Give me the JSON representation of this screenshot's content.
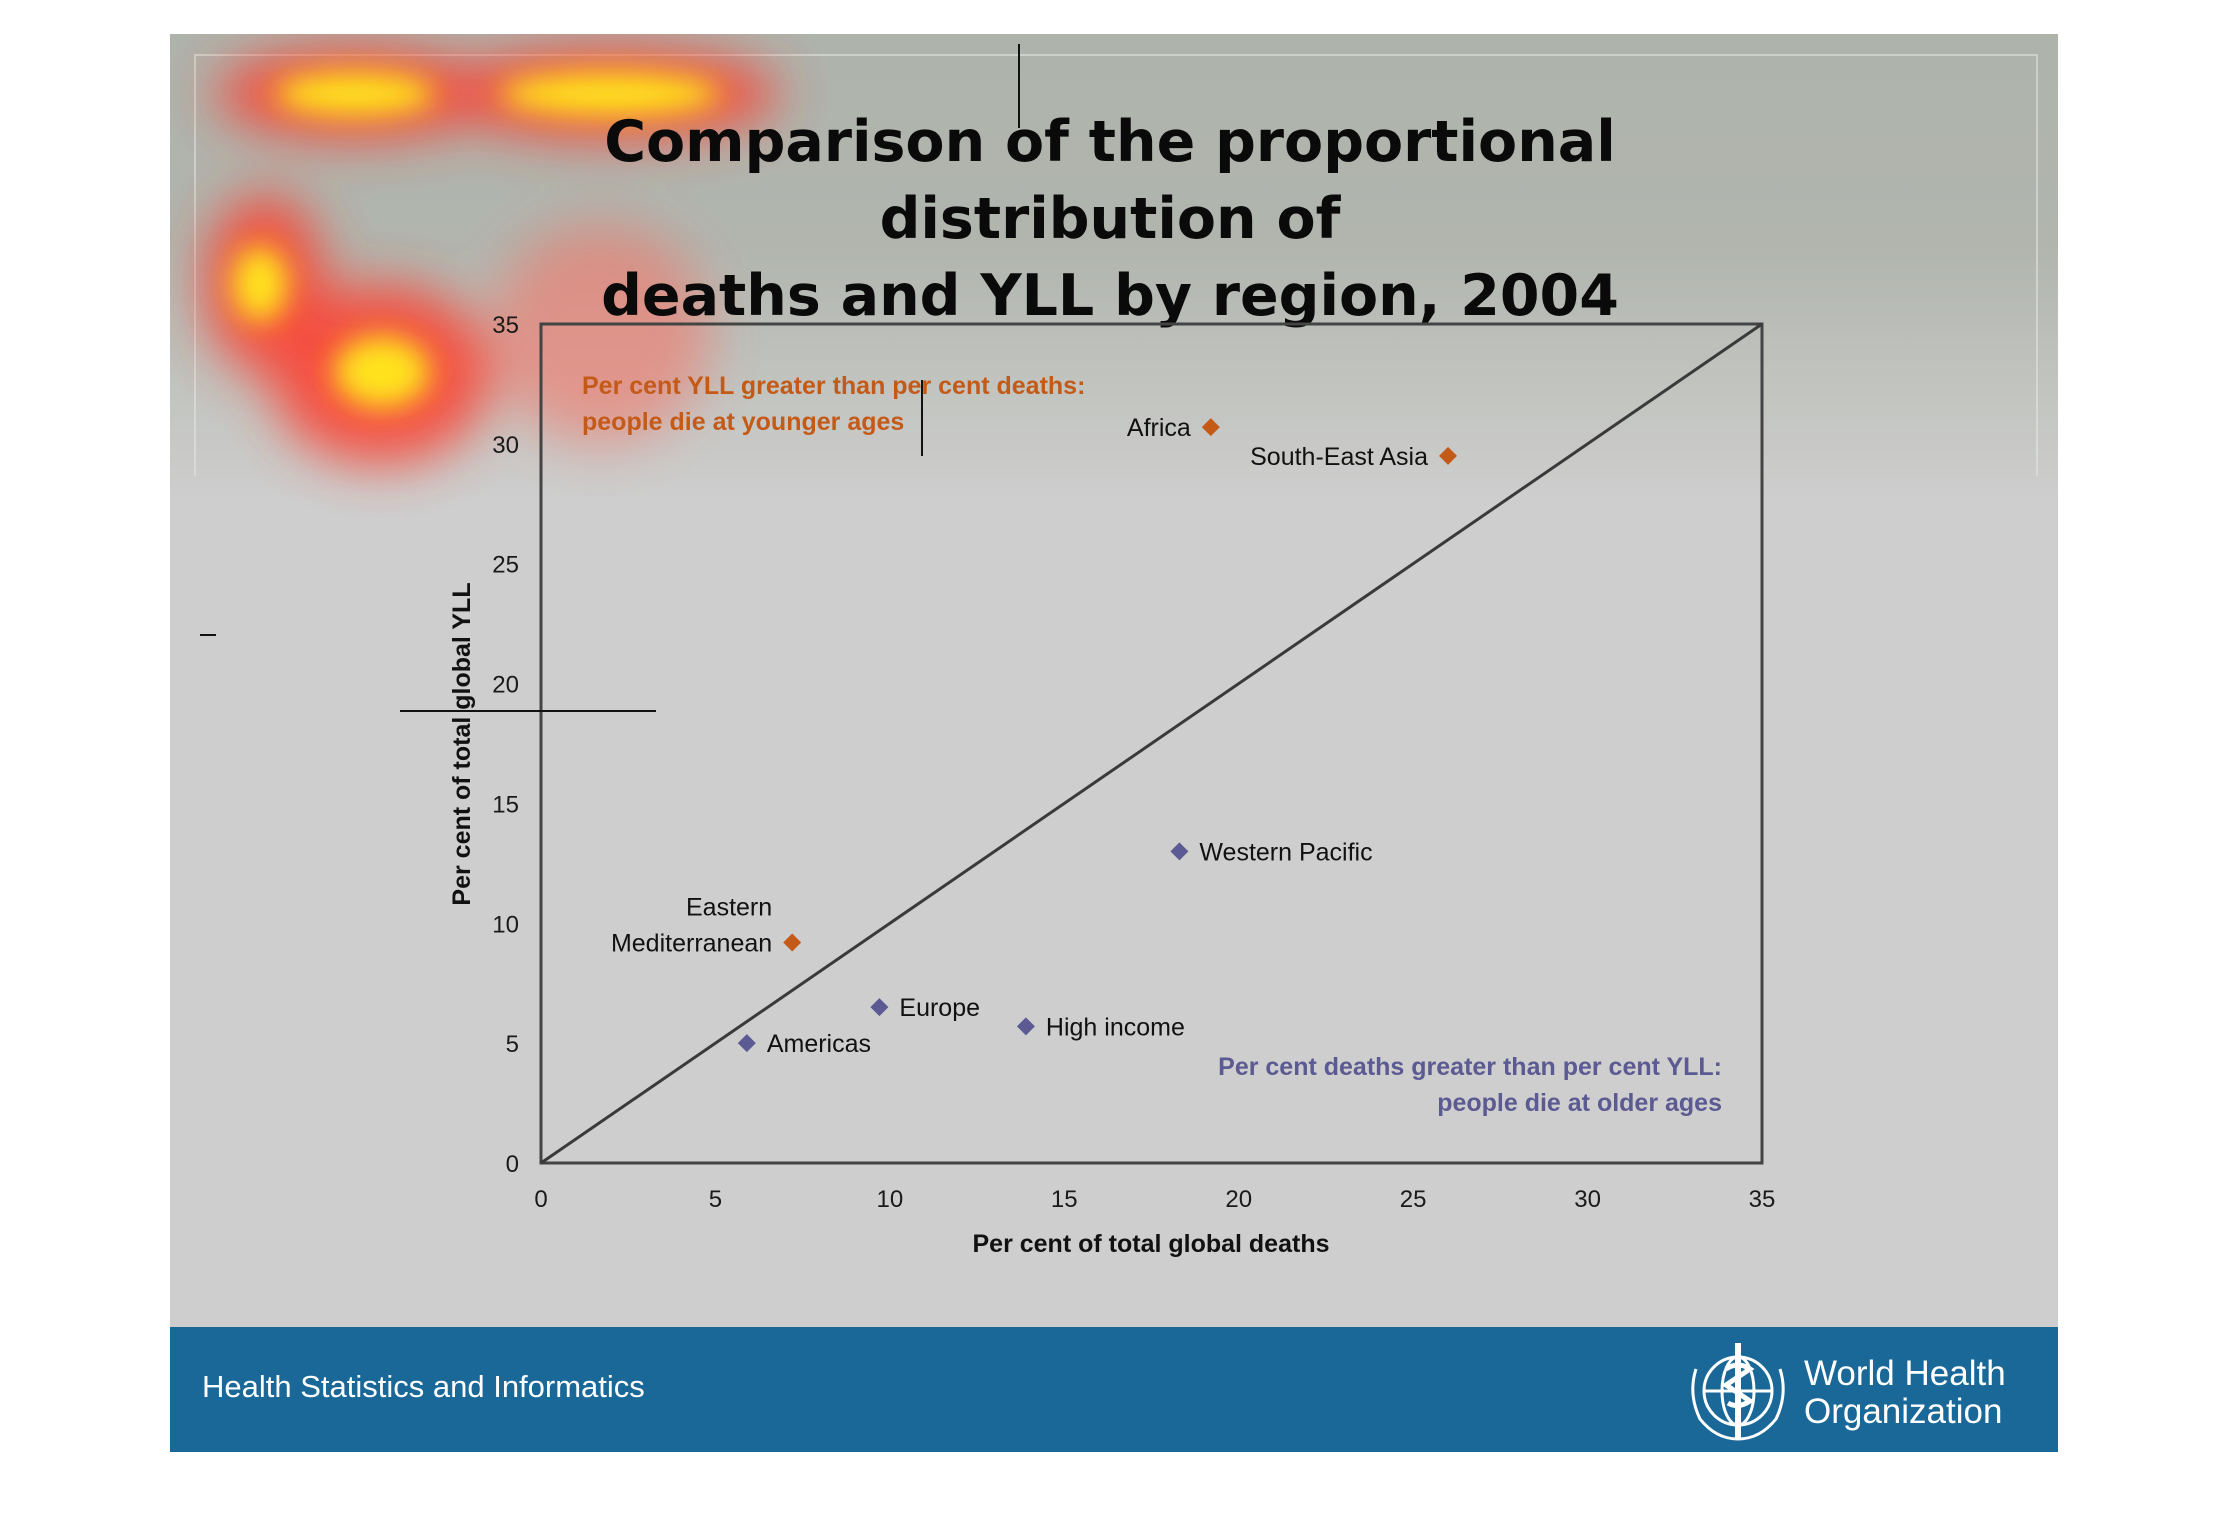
{
  "slide": {
    "title": "Comparison of the proportional distribution of deaths and YLL by region, 2004",
    "footer": "Health Statistics and Informatics",
    "logo": {
      "name_line1": "World Health",
      "name_line2": "Organization"
    },
    "colors": {
      "footer": "#1a6897",
      "orange": "#c45a18",
      "blue": "#5b5a92"
    }
  },
  "chart_data": {
    "type": "scatter",
    "title": "Comparison of the proportional distribution of deaths and YLL by region, 2004",
    "xlabel": "Per cent of total global deaths",
    "ylabel": "Per cent of total global YLL",
    "xlim": [
      0,
      35
    ],
    "ylim": [
      0,
      35
    ],
    "xticks": [
      "0",
      "5",
      "10",
      "15",
      "20",
      "25",
      "30",
      "35"
    ],
    "yticks": [
      "0",
      "5",
      "10",
      "15",
      "20",
      "25",
      "30",
      "35"
    ],
    "grid": false,
    "reference_line": {
      "from": [
        0,
        0
      ],
      "to": [
        35,
        35
      ]
    },
    "points": [
      {
        "label": "Africa",
        "x": 19.2,
        "y": 30.7,
        "group": "yll_higher"
      },
      {
        "label": "South-East Asia",
        "x": 26.0,
        "y": 29.5,
        "group": "yll_higher"
      },
      {
        "label": "Eastern Mediterranean",
        "x": 7.2,
        "y": 9.2,
        "group": "yll_higher"
      },
      {
        "label": "Western Pacific",
        "x": 18.3,
        "y": 13.0,
        "group": "deaths_higher"
      },
      {
        "label": "Europe",
        "x": 9.7,
        "y": 6.5,
        "group": "deaths_higher"
      },
      {
        "label": "High income",
        "x": 13.9,
        "y": 5.7,
        "group": "deaths_higher"
      },
      {
        "label": "Americas",
        "x": 5.9,
        "y": 5.0,
        "group": "deaths_higher"
      }
    ],
    "annotations": [
      {
        "lines": [
          "Per cent YLL greater than per cent deaths:",
          "people die at younger ages"
        ],
        "color": "#c45a18"
      },
      {
        "lines": [
          "Per cent deaths greater than per cent YLL:",
          "people die at older ages"
        ],
        "color": "#5b5a92"
      }
    ],
    "colors": {
      "yll_higher": "#c45a18",
      "deaths_higher": "#5b5a92"
    }
  }
}
